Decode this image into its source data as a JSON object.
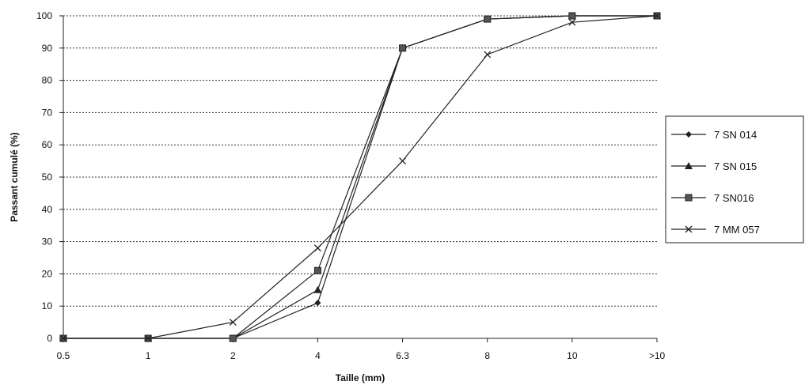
{
  "chart_data": {
    "type": "line",
    "xlabel": "Taille (mm)",
    "ylabel": "Passant cumulé (%)",
    "categories": [
      "0.5",
      "1",
      "2",
      "4",
      "6.3",
      "8",
      "10",
      ">10"
    ],
    "ylim": [
      0,
      100
    ],
    "yticks": [
      "0",
      "10",
      "20",
      "30",
      "40",
      "50",
      "60",
      "70",
      "80",
      "90",
      "100"
    ],
    "grid": true,
    "legend_position": "right",
    "series": [
      {
        "name": "7 SN 014",
        "marker": "diamond",
        "values": [
          0,
          0,
          0,
          11,
          90,
          99,
          100,
          100
        ]
      },
      {
        "name": "7 SN 015",
        "marker": "triangle",
        "values": [
          0,
          0,
          0,
          15,
          90,
          99,
          100,
          100
        ]
      },
      {
        "name": "7 SN016",
        "marker": "square",
        "values": [
          0,
          0,
          0,
          21,
          90,
          99,
          100,
          100
        ]
      },
      {
        "name": "7 MM 057",
        "marker": "x",
        "values": [
          0,
          0,
          5,
          28,
          55,
          88,
          98,
          100
        ]
      }
    ],
    "colors": {
      "line": "#222222",
      "grid": "#333333"
    }
  }
}
